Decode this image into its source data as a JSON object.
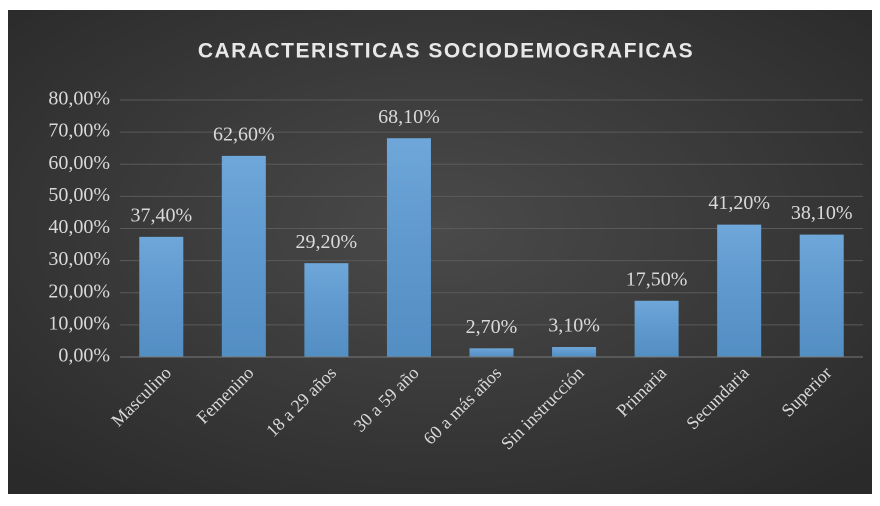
{
  "chart_data": {
    "type": "bar",
    "title": "CARACTERISTICAS SOCIODEMOGRAFICAS",
    "categories": [
      "Masculino",
      "Femenino",
      "18 a 29 años",
      "30 a 59 año",
      "60 a más años",
      "Sin instrucción",
      "Primaria",
      "Secundaria",
      "Superior"
    ],
    "values": [
      37.4,
      62.6,
      29.2,
      68.1,
      2.7,
      3.1,
      17.5,
      41.2,
      38.1
    ],
    "value_labels": [
      "37,40%",
      "62,60%",
      "29,20%",
      "68,10%",
      "2,70%",
      "3,10%",
      "17,50%",
      "41,20%",
      "38,10%"
    ],
    "color": "#5b9bd5",
    "ylim": [
      0,
      80
    ],
    "yticks": [
      {
        "value": 0,
        "label": "0,00%"
      },
      {
        "value": 10,
        "label": "10,00%"
      },
      {
        "value": 20,
        "label": "20,00%"
      },
      {
        "value": 30,
        "label": "30,00%"
      },
      {
        "value": 40,
        "label": "40,00%"
      },
      {
        "value": 50,
        "label": "50,00%"
      },
      {
        "value": 60,
        "label": "60,00%"
      },
      {
        "value": 70,
        "label": "70,00%"
      },
      {
        "value": 80,
        "label": "80,00%"
      }
    ],
    "grid": true
  }
}
